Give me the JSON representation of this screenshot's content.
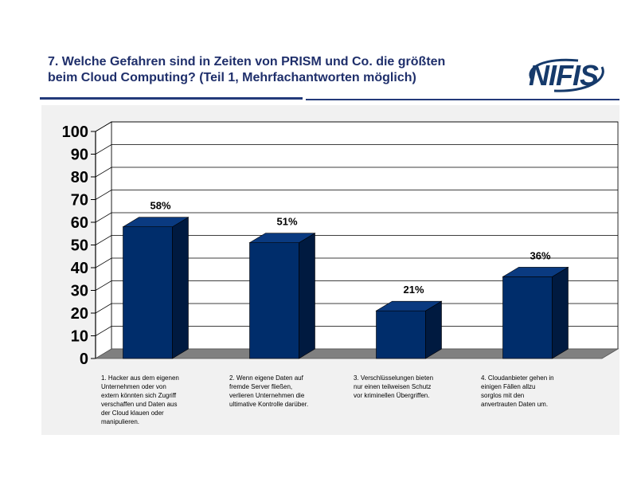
{
  "header": {
    "title_line1": "7. Welche Gefahren sind in Zeiten von PRISM und Co. die größten",
    "title_line2": "beim Cloud Computing? (Teil 1, Mehrfachantworten möglich)",
    "logo_text": "NIFIS"
  },
  "colors": {
    "title": "#1f2f6b",
    "bar_front": "#002d6b",
    "bar_side": "#001a40",
    "bar_top": "#0a3a80",
    "floor": "#808080",
    "wall": "#ffffff",
    "panel": "#f1f1f1",
    "logo": "#163a6b"
  },
  "chart_data": {
    "type": "bar",
    "title": "",
    "xlabel": "",
    "ylabel": "",
    "ylim": [
      0,
      100
    ],
    "yticks": [
      "0",
      "10",
      "20",
      "30",
      "40",
      "50",
      "60",
      "70",
      "80",
      "90",
      "100"
    ],
    "categories": [
      "1. Hacker aus dem eigenen Unternehmen oder von extern könnten sich Zugriff verschaffen und Daten aus der Cloud klauen oder manipulieren.",
      "2. Wenn eigene Daten auf fremde Server fließen, verlieren Unternehmen die ultimative Kontrolle darüber.",
      "3. Verschlüsselungen bieten nur einen teilweisen Schutz vor kriminellen Übergriffen.",
      "4. Cloudanbieter gehen in einigen Fällen allzu sorglos mit den anvertrauten Daten um."
    ],
    "category_lines": [
      [
        "1. Hacker aus dem eigenen",
        "Unternehmen oder von",
        "extern könnten sich Zugriff",
        "verschaffen und Daten aus",
        "der Cloud klauen oder",
        "manipulieren."
      ],
      [
        "2. Wenn eigene Daten auf",
        "fremde Server fließen,",
        "verlieren Unternehmen die",
        "ultimative Kontrolle darüber."
      ],
      [
        "3. Verschlüsselungen bieten",
        "nur einen teilweisen Schutz",
        "vor kriminellen Übergriffen."
      ],
      [
        "4. Cloudanbieter gehen in",
        "einigen Fällen allzu",
        "sorglos mit den",
        "anvertrauten Daten um."
      ]
    ],
    "values": [
      58,
      51,
      21,
      36
    ],
    "data_labels": [
      "58%",
      "51%",
      "21%",
      "36%"
    ],
    "grid": true,
    "legend": "none",
    "style": "3d-column"
  }
}
